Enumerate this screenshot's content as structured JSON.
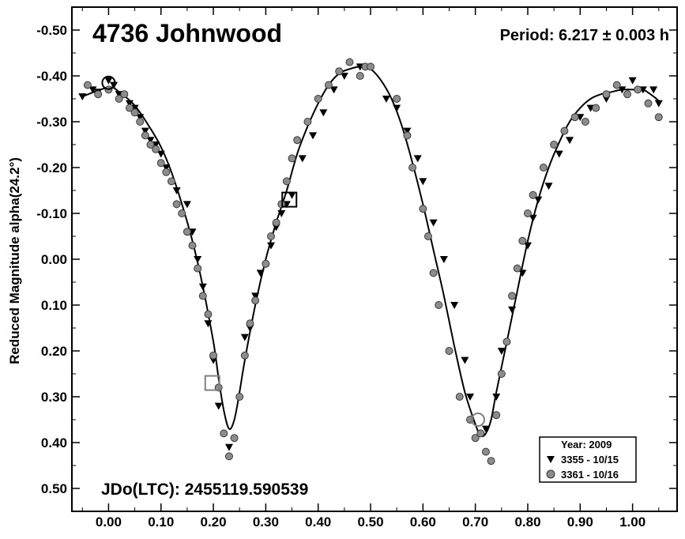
{
  "chart_data": {
    "type": "scatter",
    "title": "4736 Johnwood",
    "annotation_period": "Period: 6.217 ± 0.003 h",
    "annotation_jd": "JDo(LTC): 2455119.590539",
    "xlabel": "",
    "ylabel": "Reduced Magnitude alpha(24.2°)",
    "xlim": [
      -0.07,
      1.085
    ],
    "ylim": [
      -0.55,
      0.55
    ],
    "y_inverted": true,
    "x_ticks": [
      0.0,
      0.1,
      0.2,
      0.3,
      0.4,
      0.5,
      0.6,
      0.7,
      0.8,
      0.9,
      1.0
    ],
    "x_tick_labels": [
      "0.00",
      "0.10",
      "0.20",
      "0.30",
      "0.40",
      "0.50",
      "0.60",
      "0.70",
      "0.80",
      "0.90",
      "1.00"
    ],
    "y_ticks": [
      -0.5,
      -0.4,
      -0.3,
      -0.2,
      -0.1,
      0.0,
      0.1,
      0.2,
      0.3,
      0.4,
      0.5
    ],
    "y_tick_labels": [
      "-0.50",
      "-0.40",
      "-0.30",
      "-0.20",
      "-0.10",
      "0.00",
      "0.10",
      "0.20",
      "0.30",
      "0.40",
      "0.50"
    ],
    "grid": false,
    "legend_position": "bottom-right",
    "legend_title": "Year: 2009",
    "series": [
      {
        "name": "3355 - 10/15",
        "marker": "triangle-down",
        "color": "#000000",
        "points": [
          [
            -0.05,
            -0.355
          ],
          [
            -0.03,
            -0.37
          ],
          [
            -0.02,
            -0.365
          ],
          [
            0.0,
            -0.39
          ],
          [
            0.01,
            -0.38
          ],
          [
            0.02,
            -0.36
          ],
          [
            0.04,
            -0.34
          ],
          [
            0.05,
            -0.33
          ],
          [
            0.06,
            -0.31
          ],
          [
            0.07,
            -0.28
          ],
          [
            0.08,
            -0.26
          ],
          [
            0.09,
            -0.25
          ],
          [
            0.1,
            -0.23
          ],
          [
            0.11,
            -0.2
          ],
          [
            0.13,
            -0.15
          ],
          [
            0.15,
            -0.12
          ],
          [
            0.16,
            -0.06
          ],
          [
            0.17,
            0.0
          ],
          [
            0.18,
            0.06
          ],
          [
            0.19,
            0.14
          ],
          [
            0.2,
            0.22
          ],
          [
            0.21,
            0.32
          ],
          [
            0.23,
            0.41
          ],
          [
            0.26,
            0.17
          ],
          [
            0.27,
            0.15
          ],
          [
            0.28,
            0.08
          ],
          [
            0.29,
            0.03
          ],
          [
            0.31,
            -0.03
          ],
          [
            0.32,
            -0.07
          ],
          [
            0.33,
            -0.1
          ],
          [
            0.34,
            -0.12
          ],
          [
            0.35,
            -0.14
          ],
          [
            0.37,
            -0.22
          ],
          [
            0.39,
            -0.27
          ],
          [
            0.41,
            -0.32
          ],
          [
            0.43,
            -0.37
          ],
          [
            0.45,
            -0.4
          ],
          [
            0.48,
            -0.42
          ],
          [
            0.53,
            -0.35
          ],
          [
            0.55,
            -0.33
          ],
          [
            0.57,
            -0.28
          ],
          [
            0.59,
            -0.22
          ],
          [
            0.6,
            -0.17
          ],
          [
            0.62,
            -0.08
          ],
          [
            0.64,
            0.0
          ],
          [
            0.66,
            0.1
          ],
          [
            0.68,
            0.22
          ],
          [
            0.69,
            0.3
          ],
          [
            0.72,
            0.37
          ],
          [
            0.74,
            0.3
          ],
          [
            0.75,
            0.2
          ],
          [
            0.77,
            0.11
          ],
          [
            0.79,
            0.03
          ],
          [
            0.8,
            -0.03
          ],
          [
            0.81,
            -0.09
          ],
          [
            0.82,
            -0.13
          ],
          [
            0.84,
            -0.16
          ],
          [
            0.86,
            -0.23
          ],
          [
            0.88,
            -0.26
          ],
          [
            0.9,
            -0.31
          ],
          [
            0.92,
            -0.33
          ],
          [
            0.95,
            -0.35
          ],
          [
            0.98,
            -0.37
          ],
          [
            1.0,
            -0.39
          ],
          [
            1.02,
            -0.37
          ],
          [
            1.04,
            -0.37
          ],
          [
            1.05,
            -0.34
          ]
        ]
      },
      {
        "name": "3361 - 10/16",
        "marker": "circle",
        "color": "#8c8c8c",
        "points": [
          [
            -0.04,
            -0.38
          ],
          [
            -0.02,
            -0.36
          ],
          [
            0.0,
            -0.37
          ],
          [
            0.02,
            -0.35
          ],
          [
            0.03,
            -0.36
          ],
          [
            0.04,
            -0.33
          ],
          [
            0.05,
            -0.32
          ],
          [
            0.06,
            -0.3
          ],
          [
            0.07,
            -0.27
          ],
          [
            0.08,
            -0.25
          ],
          [
            0.09,
            -0.24
          ],
          [
            0.1,
            -0.21
          ],
          [
            0.11,
            -0.19
          ],
          [
            0.12,
            -0.17
          ],
          [
            0.13,
            -0.12
          ],
          [
            0.14,
            -0.1
          ],
          [
            0.15,
            -0.06
          ],
          [
            0.16,
            -0.03
          ],
          [
            0.17,
            0.02
          ],
          [
            0.18,
            0.08
          ],
          [
            0.19,
            0.12
          ],
          [
            0.2,
            0.21
          ],
          [
            0.21,
            0.28
          ],
          [
            0.22,
            0.38
          ],
          [
            0.23,
            0.43
          ],
          [
            0.24,
            0.39
          ],
          [
            0.25,
            0.3
          ],
          [
            0.26,
            0.21
          ],
          [
            0.27,
            0.14
          ],
          [
            0.28,
            0.09
          ],
          [
            0.3,
            0.01
          ],
          [
            0.31,
            -0.05
          ],
          [
            0.32,
            -0.08
          ],
          [
            0.33,
            -0.12
          ],
          [
            0.34,
            -0.17
          ],
          [
            0.35,
            -0.22
          ],
          [
            0.36,
            -0.26
          ],
          [
            0.38,
            -0.3
          ],
          [
            0.4,
            -0.35
          ],
          [
            0.42,
            -0.38
          ],
          [
            0.44,
            -0.41
          ],
          [
            0.46,
            -0.43
          ],
          [
            0.48,
            -0.4
          ],
          [
            0.49,
            -0.42
          ],
          [
            0.5,
            -0.42
          ],
          [
            0.55,
            -0.35
          ],
          [
            0.57,
            -0.27
          ],
          [
            0.58,
            -0.2
          ],
          [
            0.6,
            -0.11
          ],
          [
            0.61,
            -0.05
          ],
          [
            0.62,
            0.03
          ],
          [
            0.63,
            0.1
          ],
          [
            0.65,
            0.2
          ],
          [
            0.67,
            0.3
          ],
          [
            0.69,
            0.35
          ],
          [
            0.7,
            0.39
          ],
          [
            0.71,
            0.38
          ],
          [
            0.72,
            0.42
          ],
          [
            0.73,
            0.44
          ],
          [
            0.74,
            0.34
          ],
          [
            0.75,
            0.25
          ],
          [
            0.76,
            0.18
          ],
          [
            0.77,
            0.08
          ],
          [
            0.78,
            0.02
          ],
          [
            0.79,
            -0.04
          ],
          [
            0.8,
            -0.1
          ],
          [
            0.81,
            -0.14
          ],
          [
            0.83,
            -0.2
          ],
          [
            0.85,
            -0.25
          ],
          [
            0.87,
            -0.28
          ],
          [
            0.89,
            -0.31
          ],
          [
            0.91,
            -0.3
          ],
          [
            0.93,
            -0.33
          ],
          [
            0.95,
            -0.36
          ],
          [
            0.97,
            -0.38
          ],
          [
            0.99,
            -0.36
          ],
          [
            1.01,
            -0.37
          ],
          [
            1.03,
            -0.34
          ],
          [
            1.05,
            -0.31
          ]
        ]
      }
    ],
    "fit_curve": [
      [
        -0.05,
        -0.355
      ],
      [
        0.0,
        -0.375
      ],
      [
        0.02,
        -0.365
      ],
      [
        0.05,
        -0.335
      ],
      [
        0.08,
        -0.285
      ],
      [
        0.1,
        -0.245
      ],
      [
        0.12,
        -0.19
      ],
      [
        0.14,
        -0.12
      ],
      [
        0.16,
        -0.04
      ],
      [
        0.18,
        0.06
      ],
      [
        0.2,
        0.18
      ],
      [
        0.21,
        0.26
      ],
      [
        0.22,
        0.33
      ],
      [
        0.23,
        0.37
      ],
      [
        0.24,
        0.35
      ],
      [
        0.25,
        0.29
      ],
      [
        0.26,
        0.22
      ],
      [
        0.28,
        0.1
      ],
      [
        0.3,
        0.0
      ],
      [
        0.32,
        -0.08
      ],
      [
        0.34,
        -0.15
      ],
      [
        0.36,
        -0.23
      ],
      [
        0.38,
        -0.29
      ],
      [
        0.4,
        -0.34
      ],
      [
        0.42,
        -0.38
      ],
      [
        0.44,
        -0.405
      ],
      [
        0.46,
        -0.415
      ],
      [
        0.48,
        -0.42
      ],
      [
        0.5,
        -0.415
      ],
      [
        0.52,
        -0.39
      ],
      [
        0.54,
        -0.35
      ],
      [
        0.56,
        -0.29
      ],
      [
        0.58,
        -0.21
      ],
      [
        0.6,
        -0.12
      ],
      [
        0.62,
        -0.02
      ],
      [
        0.64,
        0.08
      ],
      [
        0.66,
        0.19
      ],
      [
        0.68,
        0.29
      ],
      [
        0.7,
        0.36
      ],
      [
        0.71,
        0.385
      ],
      [
        0.72,
        0.38
      ],
      [
        0.73,
        0.35
      ],
      [
        0.74,
        0.29
      ],
      [
        0.76,
        0.18
      ],
      [
        0.78,
        0.07
      ],
      [
        0.8,
        -0.04
      ],
      [
        0.82,
        -0.13
      ],
      [
        0.84,
        -0.2
      ],
      [
        0.86,
        -0.255
      ],
      [
        0.88,
        -0.3
      ],
      [
        0.9,
        -0.33
      ],
      [
        0.92,
        -0.35
      ],
      [
        0.94,
        -0.36
      ],
      [
        0.96,
        -0.365
      ],
      [
        0.98,
        -0.37
      ],
      [
        1.0,
        -0.37
      ],
      [
        1.02,
        -0.37
      ],
      [
        1.04,
        -0.355
      ],
      [
        1.05,
        -0.345
      ]
    ],
    "highlight_markers": [
      {
        "x": 0.345,
        "y": -0.13,
        "shape": "square",
        "color": "#000000"
      },
      {
        "x": 0.198,
        "y": 0.27,
        "shape": "square",
        "color": "#808080"
      },
      {
        "x": 0.705,
        "y": 0.35,
        "shape": "circle",
        "color": "#808080"
      },
      {
        "x": 0.0,
        "y": -0.385,
        "shape": "circle",
        "color": "#000000"
      }
    ]
  }
}
